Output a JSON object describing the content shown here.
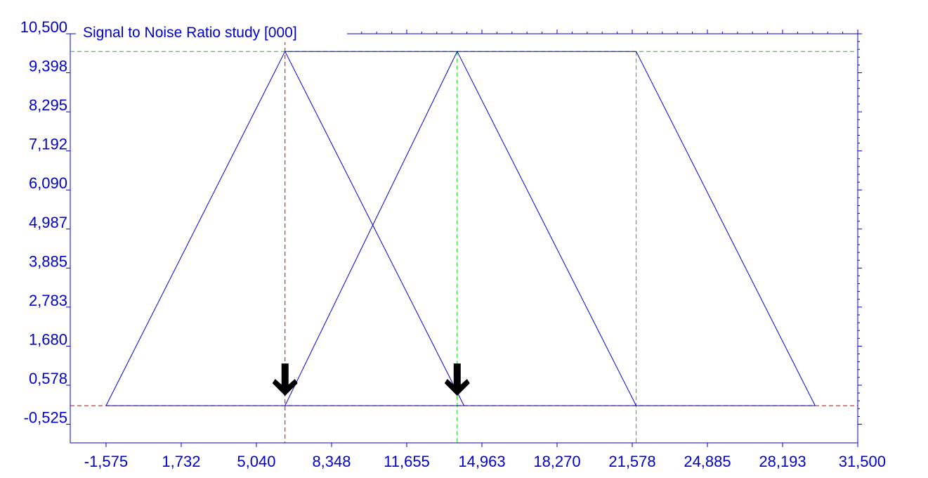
{
  "chart_data": {
    "type": "line",
    "title": "Signal to Noise Ratio study [000]",
    "xlabel": "",
    "ylabel": "",
    "xlim": [
      -3.15,
      31.5
    ],
    "ylim": [
      -1.05,
      10.5
    ],
    "x_tick_labels": [
      "-1,575",
      "1,732",
      "5,040",
      "8,348",
      "11,655",
      "14,963",
      "18,270",
      "21,578",
      "24,885",
      "28,193",
      "31,500"
    ],
    "x_tick_values": [
      -1.575,
      1.732,
      5.04,
      8.348,
      11.655,
      14.963,
      18.27,
      21.578,
      24.885,
      28.193,
      31.5
    ],
    "y_tick_labels": [
      "-0,525",
      "0,578",
      "1,680",
      "2,783",
      "3,885",
      "4,987",
      "6,090",
      "7,192",
      "8,295",
      "9,398",
      "10,500"
    ],
    "y_tick_values": [
      -0.525,
      0.578,
      1.68,
      2.783,
      3.885,
      4.987,
      6.09,
      7.192,
      8.295,
      9.398,
      10.5
    ],
    "series": [
      {
        "x": [
          -1.575,
          6.3,
          14.175
        ],
        "y": [
          0,
          10,
          0
        ]
      },
      {
        "x": [
          6.3,
          13.875,
          21.75
        ],
        "y": [
          0,
          10,
          0
        ]
      },
      {
        "x": [
          21.75,
          29.625
        ],
        "y": [
          10,
          0
        ]
      },
      {
        "x": [
          6.3,
          21.75
        ],
        "y": [
          10,
          10
        ]
      },
      {
        "x": [
          -1.575,
          29.625
        ],
        "y": [
          0,
          0
        ]
      }
    ],
    "reference_lines": {
      "horizontal": [
        0,
        10
      ],
      "vertical": [
        6.3,
        13.875,
        21.75
      ]
    },
    "markers": [
      {
        "type": "down-arrow",
        "x": 6.3
      },
      {
        "type": "down-arrow",
        "x": 13.875
      }
    ],
    "colors": {
      "line": "#0000cc",
      "axis": "#0000cc",
      "guide_green": "#00cc00",
      "guide_red": "#cc0000",
      "marker": "#000000"
    }
  }
}
